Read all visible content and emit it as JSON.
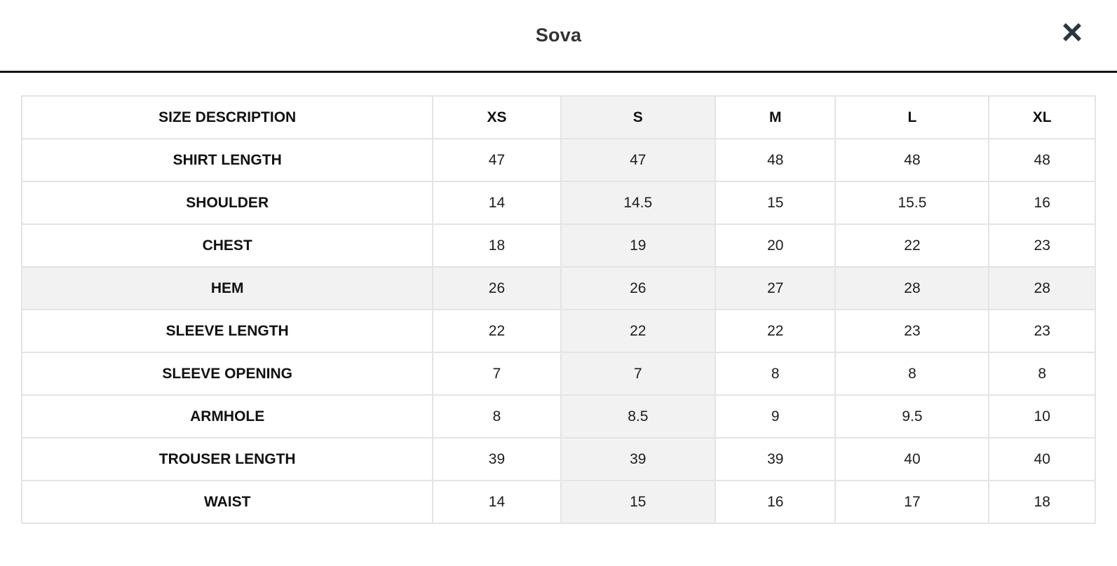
{
  "modal": {
    "title": "Sova",
    "close_icon": "x-close"
  },
  "table": {
    "columns": [
      "SIZE DESCRIPTION",
      "XS",
      "S",
      "M",
      "L",
      "XL"
    ],
    "column_widths_pct": [
      38.3,
      11.9,
      14.4,
      11.2,
      14.3,
      9.9
    ],
    "highlight": {
      "column_index": 2,
      "row_index": 3,
      "highlighted_column_label": "S",
      "highlighted_row_label": "HEM"
    },
    "rows": [
      {
        "label": "SHIRT LENGTH",
        "values": [
          "47",
          "47",
          "48",
          "48",
          "48"
        ]
      },
      {
        "label": "SHOULDER",
        "values": [
          "14",
          "14.5",
          "15",
          "15.5",
          "16"
        ]
      },
      {
        "label": "CHEST",
        "values": [
          "18",
          "19",
          "20",
          "22",
          "23"
        ]
      },
      {
        "label": "HEM",
        "values": [
          "26",
          "26",
          "27",
          "28",
          "28"
        ]
      },
      {
        "label": "SLEEVE LENGTH",
        "values": [
          "22",
          "22",
          "22",
          "23",
          "23"
        ]
      },
      {
        "label": "SLEEVE OPENING",
        "values": [
          "7",
          "7",
          "8",
          "8",
          "8"
        ]
      },
      {
        "label": "ARMHOLE",
        "values": [
          "8",
          "8.5",
          "9",
          "9.5",
          "10"
        ]
      },
      {
        "label": "TROUSER LENGTH",
        "values": [
          "39",
          "39",
          "39",
          "40",
          "40"
        ]
      },
      {
        "label": "WAIST",
        "values": [
          "14",
          "15",
          "16",
          "17",
          "18"
        ]
      }
    ],
    "colors": {
      "highlight_bg": "#f2f2f2",
      "table_border": "#e4e4e4",
      "header_divider": "#141414",
      "text": "#1d1d1d",
      "title_text": "#333333",
      "close_icon": "#2b3440"
    }
  }
}
